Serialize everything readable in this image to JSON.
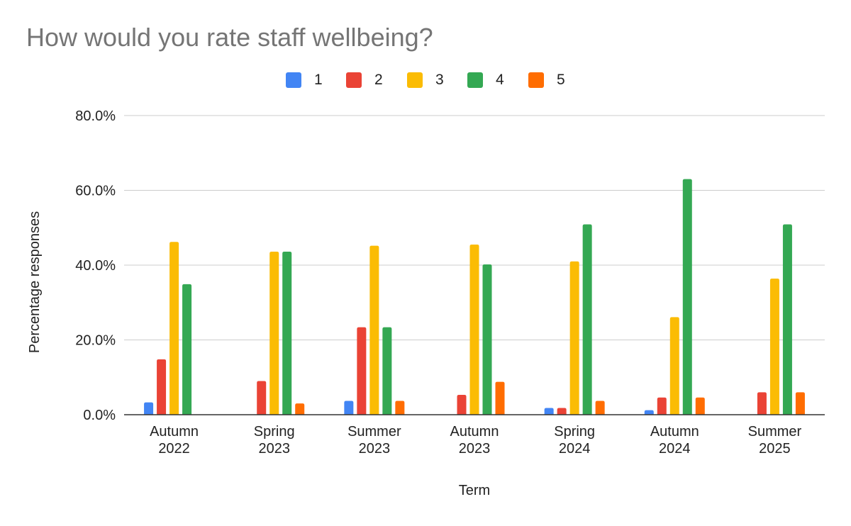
{
  "chart_data": {
    "type": "bar",
    "title": "How would you rate staff wellbeing?",
    "xlabel": "Term",
    "ylabel": "Percentage responses",
    "ylim": [
      0,
      80
    ],
    "yticks": [
      "0.0%",
      "20.0%",
      "40.0%",
      "60.0%",
      "80.0%"
    ],
    "ytick_values": [
      0,
      20,
      40,
      60,
      80
    ],
    "grid": true,
    "legend_position": "top",
    "categories": [
      [
        "Autumn",
        "2022"
      ],
      [
        "Spring",
        "2023"
      ],
      [
        "Summer",
        "2023"
      ],
      [
        "Autumn",
        "2023"
      ],
      [
        "Spring",
        "2024"
      ],
      [
        "Autumn",
        "2024"
      ],
      [
        "Summer",
        "2025"
      ]
    ],
    "series": [
      {
        "name": "1",
        "color": "#4285F4",
        "values": [
          3.3,
          0,
          3.7,
          0,
          1.8,
          1.2,
          0
        ]
      },
      {
        "name": "2",
        "color": "#EA4335",
        "values": [
          14.8,
          9.0,
          23.4,
          5.3,
          1.8,
          4.6,
          6.0
        ]
      },
      {
        "name": "3",
        "color": "#FBBC04",
        "values": [
          46.2,
          43.6,
          45.2,
          45.5,
          41.0,
          26.1,
          36.4
        ]
      },
      {
        "name": "4",
        "color": "#34A853",
        "values": [
          34.9,
          43.6,
          23.4,
          40.2,
          50.9,
          63.0,
          50.9
        ]
      },
      {
        "name": "5",
        "color": "#FF6D01",
        "values": [
          0,
          3.0,
          3.7,
          8.8,
          3.7,
          4.6,
          6.0
        ]
      }
    ]
  }
}
